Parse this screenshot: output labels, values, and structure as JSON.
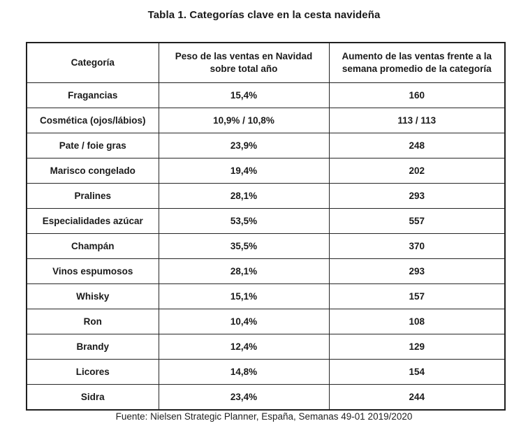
{
  "title": "Tabla 1. Categorías clave en la cesta navideña",
  "table": {
    "columns": [
      "Categoría",
      "Peso de las ventas en Navidad sobre total año",
      "Aumento de las ventas frente a la semana promedio de la categoría"
    ],
    "rows": [
      [
        "Fragancias",
        "15,4%",
        "160"
      ],
      [
        "Cosmética (ojos/lábios)",
        "10,9% / 10,8%",
        "113 / 113"
      ],
      [
        "Pate / foie gras",
        "23,9%",
        "248"
      ],
      [
        "Marisco congelado",
        "19,4%",
        "202"
      ],
      [
        "Pralines",
        "28,1%",
        "293"
      ],
      [
        "Especialidades azúcar",
        "53,5%",
        "557"
      ],
      [
        "Champán",
        "35,5%",
        "370"
      ],
      [
        "Vinos espumosos",
        "28,1%",
        "293"
      ],
      [
        "Whisky",
        "15,1%",
        "157"
      ],
      [
        "Ron",
        "10,4%",
        "108"
      ],
      [
        "Brandy",
        "12,4%",
        "129"
      ],
      [
        "Licores",
        "14,8%",
        "154"
      ],
      [
        "Sidra",
        "23,4%",
        "244"
      ]
    ]
  },
  "source": "Fuente: Nielsen Strategic Planner, España, Semanas 49-01 2019/2020",
  "colors": {
    "text": "#1a1a1a",
    "border": "#1f1f1f",
    "background": "#ffffff"
  }
}
